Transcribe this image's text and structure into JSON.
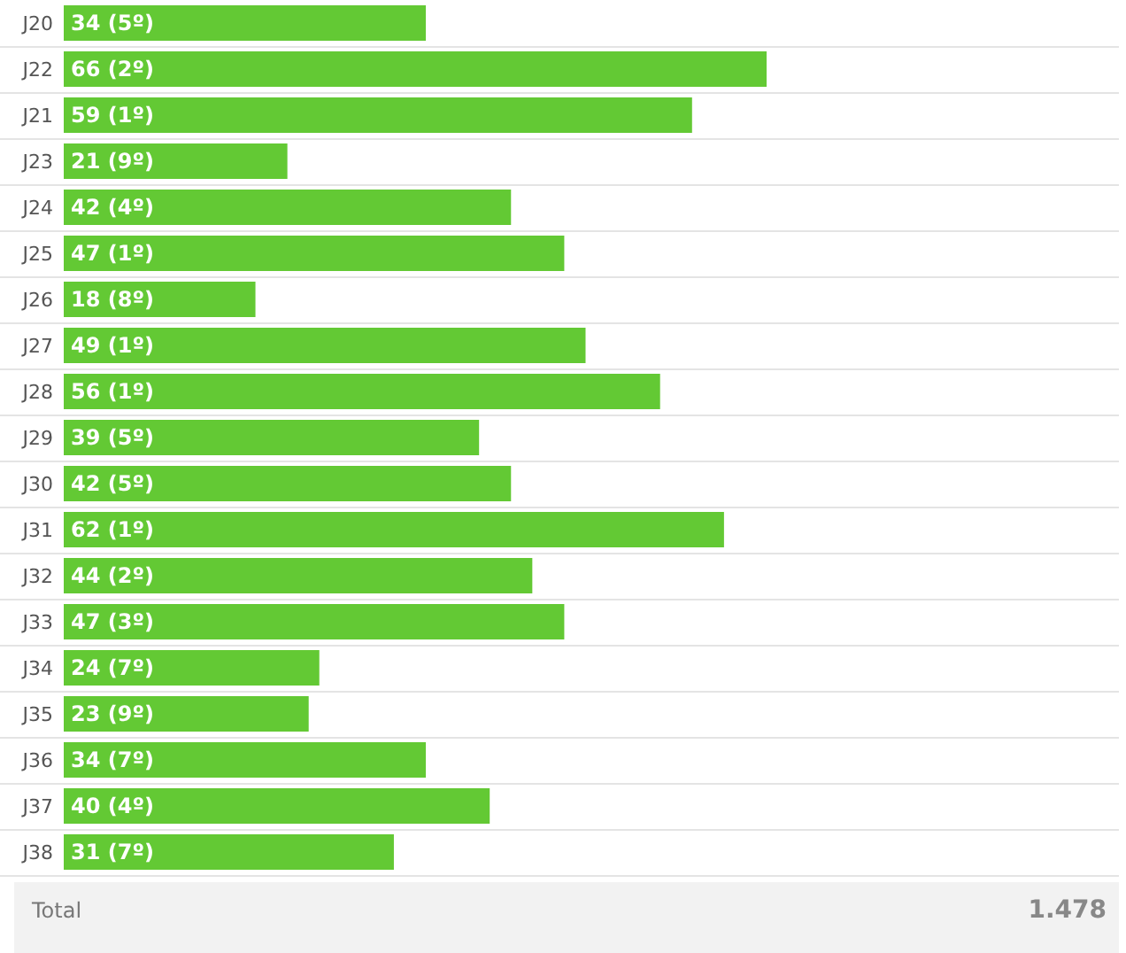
{
  "chart_data": {
    "type": "bar",
    "orientation": "horizontal",
    "categories": [
      "J20",
      "J22",
      "J21",
      "J23",
      "J24",
      "J25",
      "J26",
      "J27",
      "J28",
      "J29",
      "J30",
      "J31",
      "J32",
      "J33",
      "J34",
      "J35",
      "J36",
      "J37",
      "J38"
    ],
    "values": [
      34,
      66,
      59,
      21,
      42,
      47,
      18,
      49,
      56,
      39,
      42,
      62,
      44,
      47,
      24,
      23,
      34,
      40,
      31
    ],
    "value_labels": [
      "34 (5º)",
      "66 (2º)",
      "59 (1º)",
      "21 (9º)",
      "42 (4º)",
      "47 (1º)",
      "18 (8º)",
      "49 (1º)",
      "56 (1º)",
      "39 (5º)",
      "42 (5º)",
      "62 (1º)",
      "44 (2º)",
      "47 (3º)",
      "24 (7º)",
      "23 (9º)",
      "34 (7º)",
      "40 (4º)",
      "31 (7º)"
    ],
    "color": "#63c934",
    "grid": "y",
    "annotations": [
      "Total",
      "1.478"
    ]
  }
}
